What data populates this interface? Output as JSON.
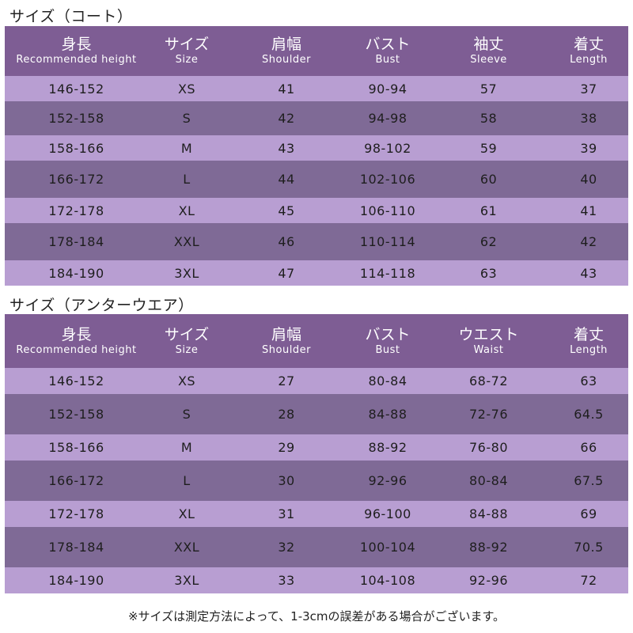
{
  "coat": {
    "title": "サイズ（コート）",
    "headers": [
      {
        "jp": "身長",
        "en": "Recommended height"
      },
      {
        "jp": "サイズ",
        "en": "Size"
      },
      {
        "jp": "肩幅",
        "en": "Shoulder"
      },
      {
        "jp": "バスト",
        "en": "Bust"
      },
      {
        "jp": "袖丈",
        "en": "Sleeve"
      },
      {
        "jp": "着丈",
        "en": "Length"
      }
    ],
    "rows": [
      [
        "146-152",
        "XS",
        "41",
        "90-94",
        "57",
        "37"
      ],
      [
        "152-158",
        "S",
        "42",
        "94-98",
        "58",
        "38"
      ],
      [
        "158-166",
        "M",
        "43",
        "98-102",
        "59",
        "39"
      ],
      [
        "166-172",
        "L",
        "44",
        "102-106",
        "60",
        "40"
      ],
      [
        "172-178",
        "XL",
        "45",
        "106-110",
        "61",
        "41"
      ],
      [
        "178-184",
        "XXL",
        "46",
        "110-114",
        "62",
        "42"
      ],
      [
        "184-190",
        "3XL",
        "47",
        "114-118",
        "63",
        "43"
      ]
    ]
  },
  "underwear": {
    "title": "サイズ（アンターウエア）",
    "headers": [
      {
        "jp": "身長",
        "en": "Recommended height"
      },
      {
        "jp": "サイズ",
        "en": "Size"
      },
      {
        "jp": "肩幅",
        "en": "Shoulder"
      },
      {
        "jp": "バスト",
        "en": "Bust"
      },
      {
        "jp": "ウエスト",
        "en": "Waist"
      },
      {
        "jp": "着丈",
        "en": "Length"
      }
    ],
    "rows": [
      [
        "146-152",
        "XS",
        "27",
        "80-84",
        "68-72",
        "63"
      ],
      [
        "152-158",
        "S",
        "28",
        "84-88",
        "72-76",
        "64.5"
      ],
      [
        "158-166",
        "M",
        "29",
        "88-92",
        "76-80",
        "66"
      ],
      [
        "166-172",
        "L",
        "30",
        "92-96",
        "80-84",
        "67.5"
      ],
      [
        "172-178",
        "XL",
        "31",
        "96-100",
        "84-88",
        "69"
      ],
      [
        "178-184",
        "XXL",
        "32",
        "100-104",
        "88-92",
        "70.5"
      ],
      [
        "184-190",
        "3XL",
        "33",
        "104-108",
        "92-96",
        "72"
      ]
    ]
  },
  "footnote": "※サイズは測定方法によって、1-3cmの誤差がある場合がございます。",
  "colors": {
    "header_bg": "#7e5d94",
    "row_dark": "#7f6a96",
    "row_light": "#b89ed2"
  }
}
